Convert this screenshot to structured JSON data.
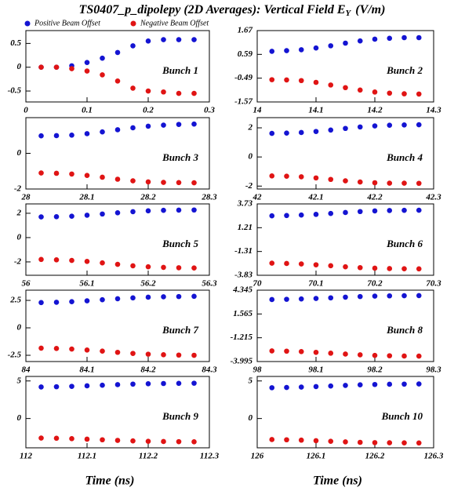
{
  "title": {
    "text": "TS0407_p_dipolepy (2D Averages): Vertical Field E",
    "subscript": "Y",
    "unit": "(V/m)"
  },
  "chart_data": [
    {
      "type": "scatter",
      "annotation": "Bunch 1",
      "xlim": [
        0,
        0.3
      ],
      "xticks": [
        0,
        0.1,
        0.2,
        0.3
      ],
      "ylim": [
        -0.73,
        0.77
      ],
      "yticks": [
        -0.5,
        0,
        0.5
      ],
      "x": [
        0.025,
        0.05,
        0.075,
        0.1,
        0.125,
        0.15,
        0.175,
        0.2,
        0.225,
        0.25,
        0.275
      ],
      "series": [
        {
          "name": "Positive Beam Offset",
          "color": "#1414d2",
          "values": [
            0,
            0,
            0.03,
            0.1,
            0.19,
            0.31,
            0.45,
            0.55,
            0.58,
            0.58,
            0.58
          ]
        },
        {
          "name": "Negative Beam Offset",
          "color": "#e01414",
          "values": [
            0,
            0,
            -0.03,
            -0.08,
            -0.16,
            -0.29,
            -0.44,
            -0.5,
            -0.52,
            -0.55,
            -0.55
          ]
        }
      ]
    },
    {
      "type": "scatter",
      "annotation": "Bunch 2",
      "xlim": [
        14,
        14.3
      ],
      "xticks": [
        14,
        14.1,
        14.2,
        14.3
      ],
      "ylim": [
        -1.57,
        1.67
      ],
      "yticks": [
        -1.57,
        -0.49,
        0.59,
        1.67
      ],
      "x": [
        14.025,
        14.05,
        14.075,
        14.1,
        14.125,
        14.15,
        14.175,
        14.2,
        14.225,
        14.25,
        14.275
      ],
      "series": [
        {
          "name": "Positive Beam Offset",
          "color": "#1414d2",
          "values": [
            0.73,
            0.76,
            0.8,
            0.88,
            0.98,
            1.1,
            1.2,
            1.28,
            1.32,
            1.35,
            1.35
          ]
        },
        {
          "name": "Negative Beam Offset",
          "color": "#e01414",
          "values": [
            -0.56,
            -0.57,
            -0.6,
            -0.68,
            -0.8,
            -0.92,
            -1.03,
            -1.12,
            -1.17,
            -1.2,
            -1.21
          ]
        }
      ]
    },
    {
      "type": "scatter",
      "annotation": "Bunch 3",
      "xlim": [
        28,
        28.3
      ],
      "xticks": [
        28,
        28.1,
        28.2,
        28.3
      ],
      "ylim": [
        -2,
        2
      ],
      "yticks": [
        -2,
        0
      ],
      "x": [
        28.025,
        28.05,
        28.075,
        28.1,
        28.125,
        28.15,
        28.175,
        28.2,
        28.225,
        28.25,
        28.275
      ],
      "series": [
        {
          "name": "Positive Beam Offset",
          "color": "#1414d2",
          "values": [
            0.98,
            0.99,
            1.02,
            1.1,
            1.2,
            1.32,
            1.43,
            1.52,
            1.58,
            1.62,
            1.64
          ]
        },
        {
          "name": "Negative Beam Offset",
          "color": "#e01414",
          "values": [
            -1.1,
            -1.12,
            -1.16,
            -1.24,
            -1.34,
            -1.45,
            -1.54,
            -1.6,
            -1.63,
            -1.64,
            -1.65
          ]
        }
      ]
    },
    {
      "type": "scatter",
      "annotation": "Bunch 4",
      "xlim": [
        42,
        42.3
      ],
      "xticks": [
        42,
        42.1,
        42.2,
        42.3
      ],
      "ylim": [
        -2.2,
        2.7
      ],
      "yticks": [
        -2,
        0,
        2
      ],
      "x": [
        42.025,
        42.05,
        42.075,
        42.1,
        42.125,
        42.15,
        42.175,
        42.2,
        42.225,
        42.25,
        42.275
      ],
      "series": [
        {
          "name": "Positive Beam Offset",
          "color": "#1414d2",
          "values": [
            1.62,
            1.64,
            1.68,
            1.75,
            1.85,
            1.96,
            2.06,
            2.13,
            2.18,
            2.2,
            2.21
          ]
        },
        {
          "name": "Negative Beam Offset",
          "color": "#e01414",
          "values": [
            -1.3,
            -1.32,
            -1.36,
            -1.44,
            -1.54,
            -1.64,
            -1.72,
            -1.77,
            -1.8,
            -1.8,
            -1.81
          ]
        }
      ]
    },
    {
      "type": "scatter",
      "annotation": "Bunch 5",
      "xlim": [
        56,
        56.3
      ],
      "xticks": [
        56,
        56.1,
        56.2,
        56.3
      ],
      "ylim": [
        -3.1,
        2.77
      ],
      "yticks": [
        -2,
        0,
        2
      ],
      "x": [
        56.025,
        56.05,
        56.075,
        56.1,
        56.125,
        56.15,
        56.175,
        56.2,
        56.225,
        56.25,
        56.275
      ],
      "series": [
        {
          "name": "Positive Beam Offset",
          "color": "#1414d2",
          "values": [
            1.7,
            1.72,
            1.76,
            1.84,
            1.94,
            2.04,
            2.13,
            2.2,
            2.24,
            2.26,
            2.27
          ]
        },
        {
          "name": "Negative Beam Offset",
          "color": "#e01414",
          "values": [
            -1.8,
            -1.83,
            -1.88,
            -1.96,
            -2.08,
            -2.2,
            -2.32,
            -2.4,
            -2.45,
            -2.48,
            -2.5
          ]
        }
      ]
    },
    {
      "type": "scatter",
      "annotation": "Bunch 6",
      "xlim": [
        70,
        70.3
      ],
      "xticks": [
        70,
        70.1,
        70.2,
        70.3
      ],
      "ylim": [
        -3.83,
        3.73
      ],
      "yticks": [
        -3.83,
        -1.31,
        1.21,
        3.73
      ],
      "x": [
        70.025,
        70.05,
        70.075,
        70.1,
        70.125,
        70.15,
        70.175,
        70.2,
        70.225,
        70.25,
        70.275
      ],
      "series": [
        {
          "name": "Positive Beam Offset",
          "color": "#1414d2",
          "values": [
            2.47,
            2.5,
            2.55,
            2.62,
            2.72,
            2.82,
            2.92,
            2.99,
            3.03,
            3.05,
            3.06
          ]
        },
        {
          "name": "Negative Beam Offset",
          "color": "#e01414",
          "values": [
            -2.55,
            -2.58,
            -2.63,
            -2.72,
            -2.82,
            -2.93,
            -3.02,
            -3.08,
            -3.12,
            -3.14,
            -3.15
          ]
        }
      ]
    },
    {
      "type": "scatter",
      "annotation": "Bunch 7",
      "xlim": [
        84,
        84.3
      ],
      "xticks": [
        84,
        84.1,
        84.2,
        84.3
      ],
      "ylim": [
        -3.07,
        3.43
      ],
      "yticks": [
        -2.5,
        0,
        2.5
      ],
      "x": [
        84.025,
        84.05,
        84.075,
        84.1,
        84.125,
        84.15,
        84.175,
        84.2,
        84.225,
        84.25,
        84.275
      ],
      "series": [
        {
          "name": "Positive Beam Offset",
          "color": "#1414d2",
          "values": [
            2.3,
            2.33,
            2.38,
            2.46,
            2.56,
            2.65,
            2.73,
            2.79,
            2.83,
            2.85,
            2.87
          ]
        },
        {
          "name": "Negative Beam Offset",
          "color": "#e01414",
          "values": [
            -1.85,
            -1.88,
            -1.93,
            -2.02,
            -2.12,
            -2.23,
            -2.33,
            -2.4,
            -2.45,
            -2.48,
            -2.5
          ]
        }
      ]
    },
    {
      "type": "scatter",
      "annotation": "Bunch 8",
      "xlim": [
        98,
        98.3
      ],
      "xticks": [
        98,
        98.1,
        98.2,
        98.3
      ],
      "ylim": [
        -3.995,
        4.345
      ],
      "yticks": [
        -3.995,
        -1.215,
        1.565,
        4.345
      ],
      "x": [
        98.025,
        98.05,
        98.075,
        98.1,
        98.125,
        98.15,
        98.175,
        98.2,
        98.225,
        98.25,
        98.275
      ],
      "series": [
        {
          "name": "Positive Beam Offset",
          "color": "#1414d2",
          "values": [
            3.25,
            3.28,
            3.32,
            3.38,
            3.45,
            3.53,
            3.6,
            3.65,
            3.68,
            3.7,
            3.71
          ]
        },
        {
          "name": "Negative Beam Offset",
          "color": "#e01414",
          "values": [
            -2.75,
            -2.78,
            -2.83,
            -2.92,
            -3.02,
            -3.12,
            -3.21,
            -3.28,
            -3.32,
            -3.35,
            -3.36
          ]
        }
      ]
    },
    {
      "type": "scatter",
      "annotation": "Bunch 9",
      "xlabel": "Time (ns)",
      "xlim": [
        112,
        112.3
      ],
      "xticks": [
        112,
        112.1,
        112.2,
        112.3
      ],
      "ylim": [
        -3.9,
        5.6
      ],
      "yticks": [
        0,
        5
      ],
      "x": [
        112.025,
        112.05,
        112.075,
        112.1,
        112.125,
        112.15,
        112.175,
        112.2,
        112.225,
        112.25,
        112.275
      ],
      "series": [
        {
          "name": "Positive Beam Offset",
          "color": "#1414d2",
          "values": [
            4.2,
            4.23,
            4.28,
            4.35,
            4.43,
            4.51,
            4.58,
            4.63,
            4.66,
            4.68,
            4.7
          ]
        },
        {
          "name": "Negative Beam Offset",
          "color": "#e01414",
          "values": [
            -2.6,
            -2.63,
            -2.68,
            -2.75,
            -2.83,
            -2.91,
            -2.98,
            -3.03,
            -3.06,
            -3.08,
            -3.1
          ]
        }
      ]
    },
    {
      "type": "scatter",
      "annotation": "Bunch 10",
      "xlabel": "Time (ns)",
      "xlim": [
        126,
        126.3
      ],
      "xticks": [
        126,
        126.1,
        126.2,
        126.3
      ],
      "ylim": [
        -3.9,
        5.6
      ],
      "yticks": [
        0,
        5
      ],
      "x": [
        126.025,
        126.05,
        126.075,
        126.1,
        126.125,
        126.15,
        126.175,
        126.2,
        126.225,
        126.25,
        126.275
      ],
      "series": [
        {
          "name": "Positive Beam Offset",
          "color": "#1414d2",
          "values": [
            4.1,
            4.13,
            4.18,
            4.25,
            4.33,
            4.41,
            4.48,
            4.53,
            4.56,
            4.58,
            4.6
          ]
        },
        {
          "name": "Negative Beam Offset",
          "color": "#e01414",
          "values": [
            -2.8,
            -2.83,
            -2.88,
            -2.95,
            -3.03,
            -3.11,
            -3.17,
            -3.21,
            -3.23,
            -3.24,
            -3.25
          ]
        }
      ]
    }
  ]
}
